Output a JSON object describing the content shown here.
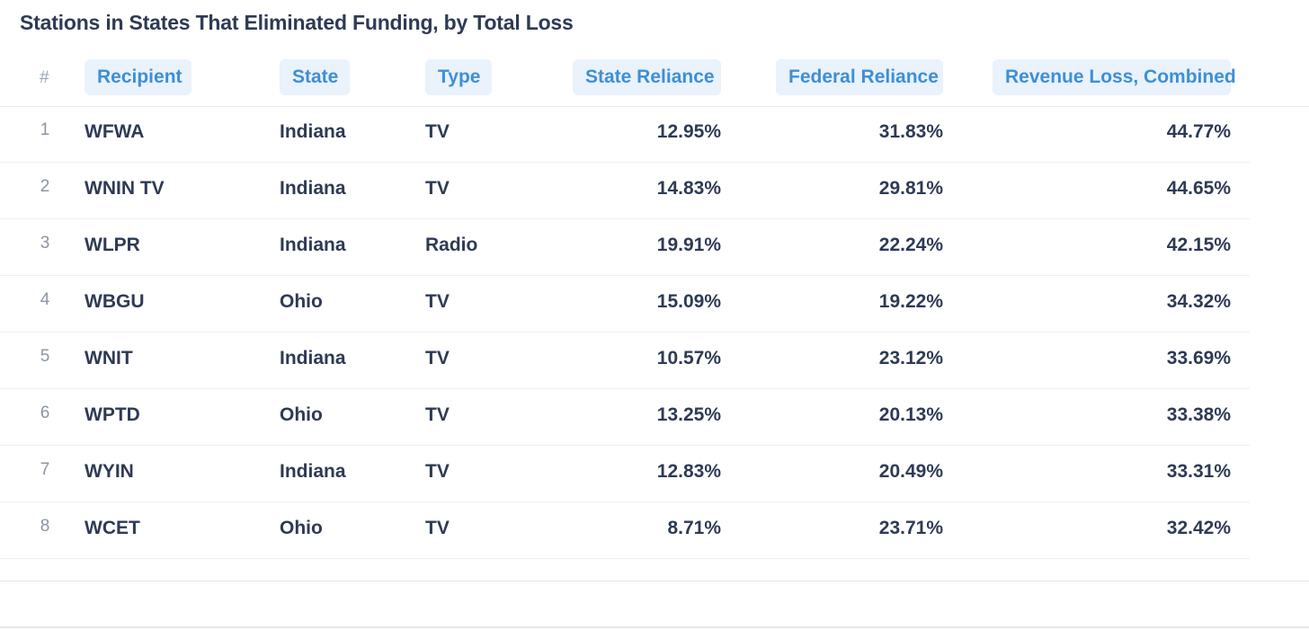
{
  "title": "Stations in States That Eliminated Funding, by Total Loss",
  "columns": {
    "index": "#",
    "recipient": "Recipient",
    "state": "State",
    "type": "Type",
    "state_reliance": "State Reliance",
    "federal_reliance": "Federal Reliance",
    "revenue_loss": "Revenue Loss, Combined"
  },
  "rows": [
    {
      "idx": "1",
      "recipient": "WFWA",
      "state": "Indiana",
      "type": "TV",
      "state_reliance": "12.95%",
      "federal_reliance": "31.83%",
      "revenue_loss": "44.77%"
    },
    {
      "idx": "2",
      "recipient": "WNIN TV",
      "state": "Indiana",
      "type": "TV",
      "state_reliance": "14.83%",
      "federal_reliance": "29.81%",
      "revenue_loss": "44.65%"
    },
    {
      "idx": "3",
      "recipient": "WLPR",
      "state": "Indiana",
      "type": "Radio",
      "state_reliance": "19.91%",
      "federal_reliance": "22.24%",
      "revenue_loss": "42.15%"
    },
    {
      "idx": "4",
      "recipient": "WBGU",
      "state": "Ohio",
      "type": "TV",
      "state_reliance": "15.09%",
      "federal_reliance": "19.22%",
      "revenue_loss": "34.32%"
    },
    {
      "idx": "5",
      "recipient": "WNIT",
      "state": "Indiana",
      "type": "TV",
      "state_reliance": "10.57%",
      "federal_reliance": "23.12%",
      "revenue_loss": "33.69%"
    },
    {
      "idx": "6",
      "recipient": "WPTD",
      "state": "Ohio",
      "type": "TV",
      "state_reliance": "13.25%",
      "federal_reliance": "20.13%",
      "revenue_loss": "33.38%"
    },
    {
      "idx": "7",
      "recipient": "WYIN",
      "state": "Indiana",
      "type": "TV",
      "state_reliance": "12.83%",
      "federal_reliance": "20.49%",
      "revenue_loss": "33.31%"
    },
    {
      "idx": "8",
      "recipient": "WCET",
      "state": "Ohio",
      "type": "TV",
      "state_reliance": "8.71%",
      "federal_reliance": "23.71%",
      "revenue_loss": "32.42%"
    }
  ],
  "colors": {
    "header_pill_bg": "#eaf2fb",
    "header_pill_text": "#3d8fd6",
    "body_text": "#2e3a55"
  }
}
